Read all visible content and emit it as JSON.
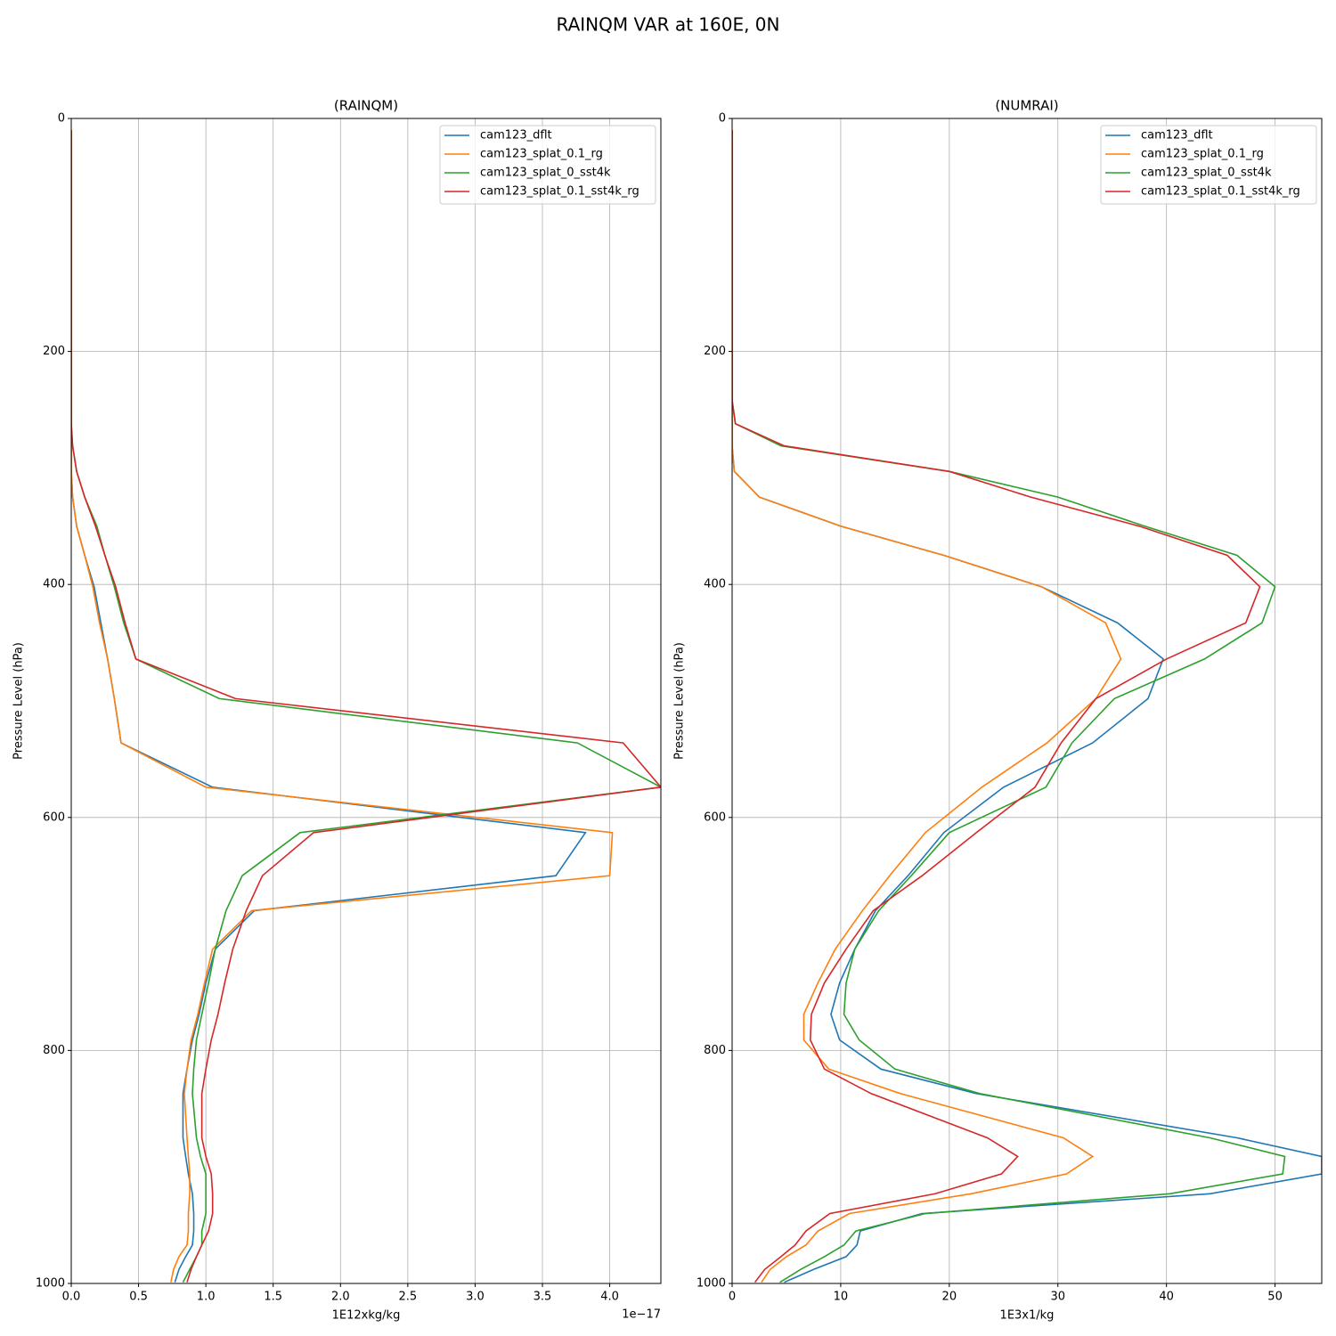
{
  "title": "RAINQM VAR at 160E, 0N",
  "chart_data": [
    {
      "type": "line",
      "title": "(RAINQM)",
      "xlabel": "1E12xkg/kg",
      "ylabel": "Pressure Level (hPa)",
      "x_offset_label": "1e−17",
      "y": [
        10,
        100,
        200,
        242,
        262,
        281,
        303,
        325,
        350,
        375,
        402,
        433,
        464,
        498,
        536,
        574,
        613,
        650,
        680,
        713,
        742,
        769,
        791,
        816,
        837,
        875,
        891,
        906,
        923,
        940,
        955,
        967,
        977,
        988,
        999
      ],
      "xlim": [
        0,
        4.38
      ],
      "ylim": [
        1000,
        0
      ],
      "xticks": [
        {
          "value": 0,
          "label": "0.0"
        },
        0.5,
        {
          "value": 1,
          "label": "1.0"
        },
        1.5,
        {
          "value": 2,
          "label": "2.0"
        },
        2.5,
        {
          "value": 3,
          "label": "3.0"
        },
        3.5,
        {
          "value": 4,
          "label": "4.0"
        }
      ],
      "yticks": [
        0,
        200,
        400,
        600,
        800,
        1000
      ],
      "grid": true,
      "legend": "upper right",
      "series": [
        {
          "name": "cam123_dflt",
          "color": "#1f77b4",
          "values": [
            0,
            0,
            0,
            0,
            0,
            0,
            0,
            0.01,
            0.04,
            0.1,
            0.17,
            0.22,
            0.27,
            0.32,
            0.37,
            1.05,
            3.82,
            3.6,
            1.36,
            1.07,
            1.0,
            0.95,
            0.9,
            0.86,
            0.83,
            0.83,
            0.85,
            0.87,
            0.9,
            0.91,
            0.91,
            0.9,
            0.85,
            0.8,
            0.77
          ]
        },
        {
          "name": "cam123_splat_0.1_rg",
          "color": "#ff7f0e",
          "values": [
            0,
            0,
            0,
            0,
            0,
            0,
            0,
            0.01,
            0.04,
            0.1,
            0.16,
            0.21,
            0.27,
            0.32,
            0.37,
            1.0,
            4.02,
            4.0,
            1.34,
            1.05,
            0.99,
            0.94,
            0.89,
            0.86,
            0.84,
            0.86,
            0.87,
            0.88,
            0.88,
            0.87,
            0.87,
            0.86,
            0.8,
            0.76,
            0.74
          ]
        },
        {
          "name": "cam123_splat_0_sst4k",
          "color": "#2ca02c",
          "values": [
            0,
            0,
            0,
            0,
            0,
            0.01,
            0.04,
            0.1,
            0.19,
            0.25,
            0.32,
            0.39,
            0.48,
            1.1,
            3.76,
            4.38,
            1.7,
            1.27,
            1.15,
            1.07,
            1.02,
            0.97,
            0.93,
            0.91,
            0.9,
            0.93,
            0.96,
            1.0,
            1.0,
            1.0,
            0.97,
            0.97,
            0.93,
            0.88,
            0.83
          ]
        },
        {
          "name": "cam123_splat_0.1_sst4k_rg",
          "color": "#d62728",
          "values": [
            0,
            0,
            0,
            0,
            0,
            0.01,
            0.04,
            0.1,
            0.18,
            0.25,
            0.33,
            0.4,
            0.48,
            1.22,
            4.1,
            4.38,
            1.8,
            1.42,
            1.3,
            1.2,
            1.14,
            1.09,
            1.04,
            1.0,
            0.97,
            0.97,
            1.0,
            1.04,
            1.05,
            1.05,
            1.02,
            0.97,
            0.93,
            0.89,
            0.86
          ]
        }
      ]
    },
    {
      "type": "line",
      "title": "(NUMRAI)",
      "xlabel": "1E3x1/kg",
      "ylabel": "Pressure Level (hPa)",
      "y": [
        10,
        100,
        200,
        242,
        262,
        281,
        303,
        325,
        350,
        375,
        402,
        433,
        464,
        498,
        536,
        574,
        613,
        650,
        680,
        713,
        742,
        769,
        791,
        816,
        837,
        875,
        891,
        906,
        923,
        940,
        955,
        967,
        977,
        988,
        999
      ],
      "xlim": [
        0,
        54.3
      ],
      "ylim": [
        1000,
        0
      ],
      "xticks": [
        0,
        10,
        20,
        30,
        40,
        50
      ],
      "yticks": [
        0,
        200,
        400,
        600,
        800,
        1000
      ],
      "grid": true,
      "legend": "upper right",
      "series": [
        {
          "name": "cam123_dflt",
          "color": "#1f77b4",
          "values": [
            0,
            0,
            0,
            0,
            0,
            0,
            0.2,
            2.5,
            10,
            19.5,
            28.5,
            35.5,
            39.7,
            38.3,
            33.2,
            25,
            19.5,
            16.2,
            13.2,
            11.3,
            9.9,
            9.1,
            9.9,
            13.7,
            22.5,
            46.5,
            54.3,
            54.3,
            44,
            17.5,
            11.8,
            11.5,
            10.5,
            7.5,
            4.8
          ]
        },
        {
          "name": "cam123_splat_0.1_rg",
          "color": "#ff7f0e",
          "values": [
            0,
            0,
            0,
            0,
            0,
            0,
            0.2,
            2.5,
            10,
            19.5,
            28.5,
            34.4,
            35.8,
            33.5,
            29,
            23,
            17.8,
            14.5,
            12,
            9.5,
            7.9,
            6.6,
            6.6,
            8.9,
            15.5,
            30.5,
            33.2,
            30.8,
            22,
            10.8,
            7.9,
            6.8,
            5,
            3.5,
            2.7
          ]
        },
        {
          "name": "cam123_splat_0_sst4k",
          "color": "#2ca02c",
          "values": [
            0,
            0,
            0,
            0,
            0.3,
            4.5,
            20,
            30,
            38,
            46.5,
            50,
            48.8,
            43.5,
            35.2,
            31.3,
            28.9,
            20,
            16.5,
            13.5,
            11.3,
            10.5,
            10.3,
            11.7,
            15,
            22.8,
            44,
            50.9,
            50.7,
            40.3,
            17.8,
            11.4,
            10.3,
            8.5,
            6.3,
            4.4
          ]
        },
        {
          "name": "cam123_splat_0.1_sst4k_rg",
          "color": "#d62728",
          "values": [
            0,
            0,
            0,
            0,
            0.3,
            4.8,
            20,
            27.5,
            37.5,
            45.6,
            48.6,
            47.3,
            40,
            33.5,
            30.3,
            27.9,
            22.5,
            17.5,
            13,
            10.5,
            8.5,
            7.3,
            7.2,
            8.5,
            12.8,
            23.5,
            26.3,
            24.8,
            18.7,
            9,
            6.8,
            5.8,
            4.5,
            3.0,
            2.1
          ]
        }
      ]
    }
  ]
}
